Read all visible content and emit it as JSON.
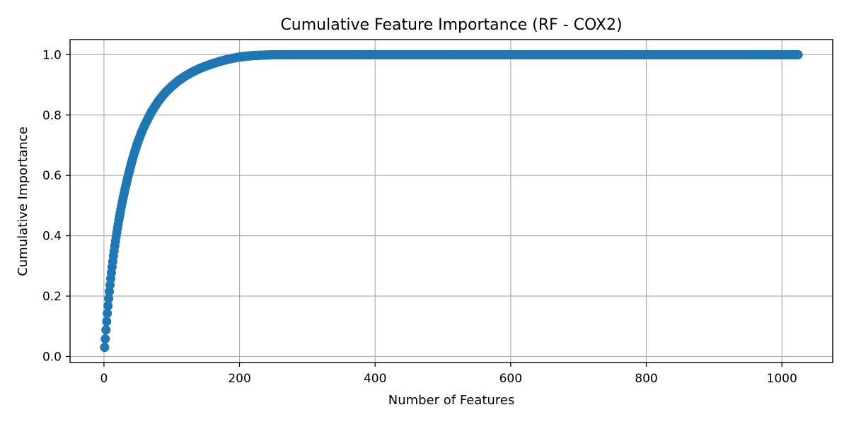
{
  "chart_data": {
    "type": "line",
    "title": "Cumulative Feature Importance (RF - COX2)",
    "xlabel": "Number of Features",
    "ylabel": "Cumulative Importance",
    "xlim": [
      -50,
      1075
    ],
    "ylim": [
      -0.02,
      1.05
    ],
    "xticks": [
      0,
      200,
      400,
      600,
      800,
      1000
    ],
    "xtick_labels": [
      "0",
      "200",
      "400",
      "600",
      "800",
      "1000"
    ],
    "yticks": [
      0.0,
      0.2,
      0.4,
      0.6,
      0.8,
      1.0
    ],
    "ytick_labels": [
      "0.0",
      "0.2",
      "0.4",
      "0.6",
      "0.8",
      "1.0"
    ],
    "grid": true,
    "marker": "circle",
    "color": "#1f77b4",
    "series": [
      {
        "x": [
          1,
          2,
          3,
          4,
          5,
          6,
          7,
          8,
          9,
          10,
          12,
          14,
          16,
          18,
          20,
          22,
          25,
          28,
          31,
          35,
          40,
          45,
          50,
          55,
          60,
          70,
          80,
          90,
          100,
          110,
          120,
          130,
          140,
          150,
          160,
          170,
          180,
          190,
          200,
          210,
          220,
          230,
          240,
          250,
          260,
          270,
          280,
          300,
          350,
          400,
          450,
          500,
          550,
          600,
          650,
          700,
          750,
          800,
          850,
          900,
          950,
          1000,
          1024
        ],
        "y": [
          0.03,
          0.058,
          0.088,
          0.116,
          0.143,
          0.168,
          0.192,
          0.215,
          0.237,
          0.258,
          0.297,
          0.333,
          0.366,
          0.397,
          0.425,
          0.452,
          0.488,
          0.522,
          0.553,
          0.592,
          0.636,
          0.676,
          0.71,
          0.74,
          0.766,
          0.81,
          0.845,
          0.873,
          0.895,
          0.914,
          0.929,
          0.942,
          0.953,
          0.962,
          0.97,
          0.977,
          0.983,
          0.988,
          0.992,
          0.995,
          0.997,
          0.998,
          0.999,
          0.9995,
          1.0,
          1.0,
          1.0,
          1.0,
          1.0,
          1.0,
          1.0,
          1.0,
          1.0,
          1.0,
          1.0,
          1.0,
          1.0,
          1.0,
          1.0,
          1.0,
          1.0,
          1.0,
          1.0
        ]
      }
    ]
  }
}
